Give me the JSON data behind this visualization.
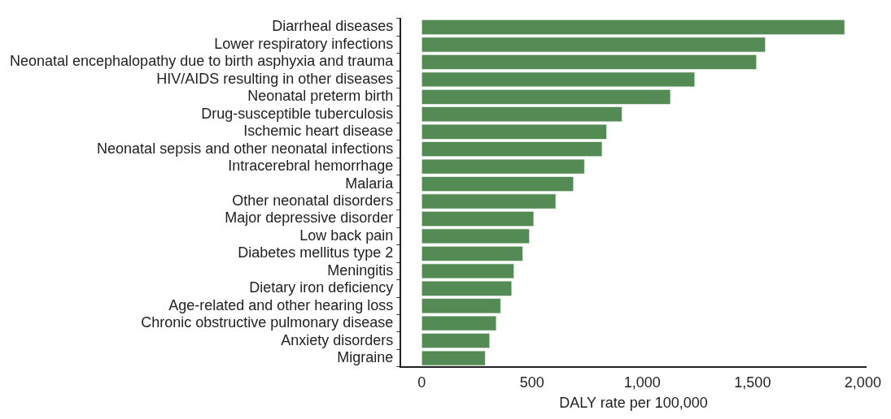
{
  "chart_data": {
    "type": "bar",
    "orientation": "horizontal",
    "xlabel": "DALY rate per 100,000",
    "categories": [
      "Diarrheal diseases",
      "Lower respiratory infections",
      "Neonatal encephalopathy due to birth asphyxia and trauma",
      "HIV/AIDS resulting in other diseases",
      "Neonatal preterm birth",
      "Drug-susceptible tuberculosis",
      "Ischemic heart disease",
      "Neonatal sepsis and other neonatal infections",
      "Intracerebral hemorrhage",
      "Malaria",
      "Other neonatal disorders",
      "Major depressive disorder",
      "Low back pain",
      "Diabetes mellitus type 2",
      "Meningitis",
      "Dietary iron deficiency",
      "Age-related and other hearing loss",
      "Chronic obstructive pulmonary disease",
      "Anxiety disorders",
      "Migraine"
    ],
    "values": [
      1920,
      1560,
      1520,
      1240,
      1130,
      910,
      840,
      820,
      740,
      690,
      610,
      510,
      490,
      460,
      420,
      410,
      360,
      340,
      310,
      290
    ],
    "color": "#548b54",
    "xlim": [
      -96,
      2016
    ],
    "xticks": [
      0,
      500,
      {
        "value": 1000,
        "label": "1,000"
      },
      {
        "value": 1500,
        "label": "1,500"
      },
      {
        "value": 2000,
        "label": "2,000"
      }
    ],
    "grid": false,
    "legend": false
  }
}
